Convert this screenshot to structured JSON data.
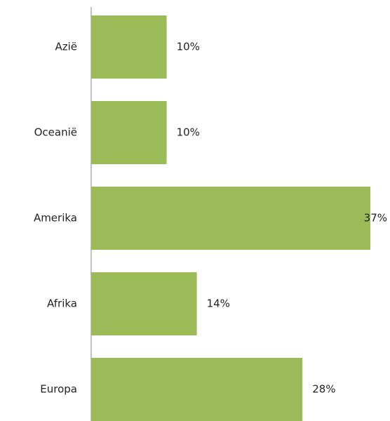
{
  "chart_data": {
    "type": "bar",
    "orientation": "horizontal",
    "categories": [
      "Azië",
      "Oceanië",
      "Amerika",
      "Afrika",
      "Europa"
    ],
    "values": [
      10,
      10,
      37,
      14,
      28
    ],
    "value_labels": [
      "10%",
      "10%",
      "37%",
      "14%",
      "28%"
    ],
    "color": "#9bbb59"
  }
}
